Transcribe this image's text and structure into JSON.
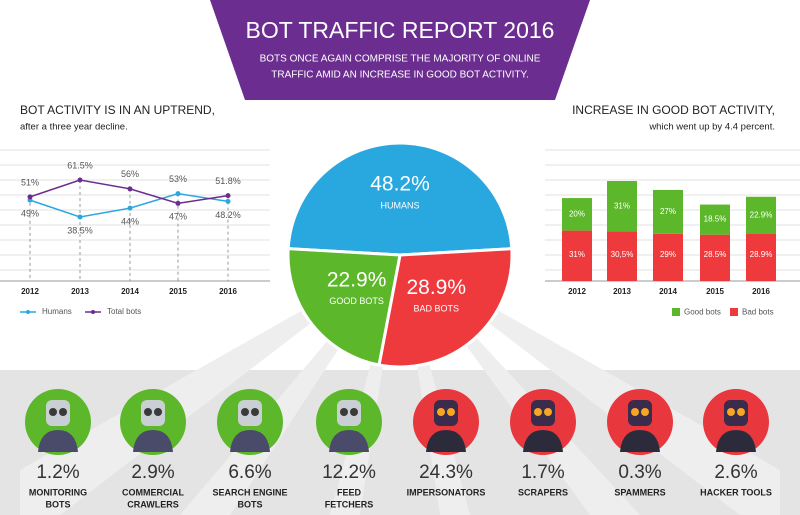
{
  "header": {
    "title": "BOT TRAFFIC REPORT 2016",
    "subtitle": [
      "BOTS ONCE AGAIN COMPRISE THE MAJORITY OF ONLINE",
      "TRAFFIC AMID AN INCREASE IN GOOD BOT ACTIVITY."
    ]
  },
  "chart_data": [
    {
      "type": "line",
      "title": "BOT ACTIVITY IS IN AN UPTREND,",
      "subtitle": "after a three year decline.",
      "categories": [
        "2012",
        "2013",
        "2014",
        "2015",
        "2016"
      ],
      "series": [
        {
          "name": "Humans",
          "color": "#29a8df",
          "values": [
            49,
            38.5,
            44,
            53,
            48.2
          ],
          "value_labels": [
            "49%",
            "38.5%",
            "44%",
            "53%",
            "48.2%"
          ]
        },
        {
          "name": "Total bots",
          "color": "#6b2d8f",
          "values": [
            51,
            61.5,
            56,
            47,
            51.8
          ],
          "value_labels": [
            "51%",
            "61.5%",
            "56%",
            "47%",
            "51.8%"
          ]
        }
      ]
    },
    {
      "type": "pie",
      "categories": [
        "HUMANS",
        "BAD BOTS",
        "GOOD BOTS"
      ],
      "values": [
        48.2,
        28.9,
        22.9
      ],
      "value_labels": [
        "48.2%",
        "28.9%",
        "22.9%"
      ],
      "colors": [
        "#29a8df",
        "#ee3a3d",
        "#5cb82a"
      ]
    },
    {
      "type": "bar",
      "stacked": true,
      "title": "INCREASE IN GOOD BOT ACTIVITY,",
      "subtitle": "which went up by 4.4 percent.",
      "categories": [
        "2012",
        "2013",
        "2014",
        "2015",
        "2016"
      ],
      "series": [
        {
          "name": "Good bots",
          "color": "#5cb82a",
          "values": [
            20,
            31,
            27,
            18.5,
            22.9
          ],
          "value_labels": [
            "20%",
            "31%",
            "27%",
            "18.5%",
            "22.9%"
          ]
        },
        {
          "name": "Bad bots",
          "color": "#ee3a3d",
          "values": [
            31,
            30.5,
            29,
            28.5,
            28.9
          ],
          "value_labels": [
            "31%",
            "30,5%",
            "29%",
            "28.5%",
            "28.9%"
          ]
        }
      ]
    }
  ],
  "bots": [
    {
      "share": "1.2%",
      "name": [
        "MONITORING",
        "BOTS"
      ],
      "kind": "good"
    },
    {
      "share": "2.9%",
      "name": [
        "COMMERCIAL",
        "CRAWLERS"
      ],
      "kind": "good"
    },
    {
      "share": "6.6%",
      "name": [
        "SEARCH ENGINE",
        "BOTS"
      ],
      "kind": "good"
    },
    {
      "share": "12.2%",
      "name": [
        "FEED",
        "FETCHERS"
      ],
      "kind": "good"
    },
    {
      "share": "24.3%",
      "name": [
        "IMPERSONATORS"
      ],
      "kind": "bad"
    },
    {
      "share": "1.7%",
      "name": [
        "SCRAPERS"
      ],
      "kind": "bad"
    },
    {
      "share": "0.3%",
      "name": [
        "SPAMMERS"
      ],
      "kind": "bad"
    },
    {
      "share": "2.6%",
      "name": [
        "HACKER TOOLS"
      ],
      "kind": "bad"
    }
  ]
}
